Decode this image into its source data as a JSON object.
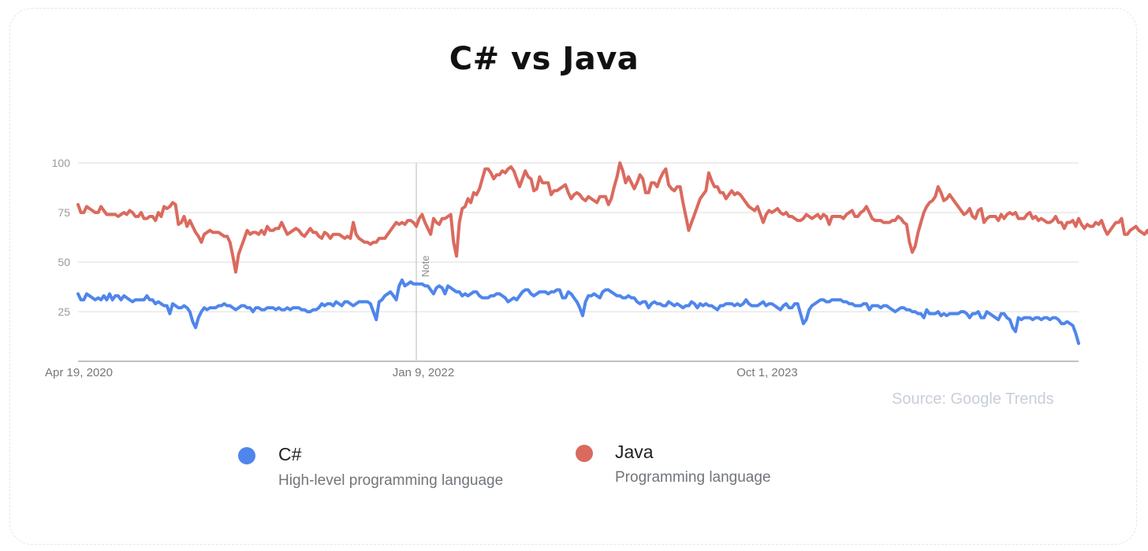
{
  "title": "C# vs Java",
  "source": "Source: Google Trends",
  "colors": {
    "csharp": "#4f86ec",
    "java": "#db6a5e",
    "grid": "#e3e3e3",
    "axis": "#9e9e9e",
    "tick": "#888888"
  },
  "legend": [
    {
      "name": "C#",
      "description": "High-level programming language",
      "color": "#4f86ec"
    },
    {
      "name": "Java",
      "description": "Programming language",
      "color": "#db6a5e"
    }
  ],
  "note_label": "Note",
  "chart_data": {
    "type": "line",
    "title": "C# vs Java",
    "xlabel": "",
    "ylabel": "",
    "ylim": [
      0,
      100
    ],
    "yticks": [
      25,
      50,
      75,
      100
    ],
    "x_range": [
      "Apr 19, 2020",
      "Mar 2025"
    ],
    "xtick_labels": [
      "Apr 19, 2020",
      "Jan 9, 2022",
      "Oct 1, 2023"
    ],
    "annotation": {
      "label": "Note",
      "at": "Jan 9, 2022"
    },
    "grid": true,
    "legend_position": "bottom",
    "series": [
      {
        "name": "C#",
        "values": [
          34,
          31,
          31,
          34,
          33,
          32,
          31,
          32,
          31,
          33,
          31,
          34,
          31,
          33,
          33,
          31,
          33,
          32,
          31,
          30,
          31,
          31,
          31,
          31,
          33,
          31,
          31,
          29,
          30,
          29,
          28,
          28,
          24,
          29,
          28,
          27,
          27,
          28,
          27,
          25,
          20,
          17,
          22,
          25,
          27,
          26,
          27,
          27,
          27,
          28,
          28,
          29,
          28,
          28,
          27,
          26,
          27,
          28,
          28,
          27,
          27,
          25,
          27,
          27,
          26,
          26,
          27,
          27,
          27,
          26,
          27,
          26,
          26,
          27,
          26,
          27,
          27,
          27,
          26,
          26,
          25,
          25,
          26,
          26,
          27,
          29,
          28,
          29,
          29,
          28,
          30,
          29,
          28,
          30,
          30,
          29,
          28,
          29,
          30,
          30,
          30,
          30,
          29,
          25,
          21,
          30,
          31,
          33,
          34,
          35,
          33,
          31,
          38,
          41,
          38,
          39,
          40,
          39,
          39,
          39,
          39,
          38,
          38,
          36,
          34,
          37,
          38,
          37,
          34,
          38,
          37,
          36,
          35,
          35,
          33,
          34,
          33,
          34,
          35,
          35,
          33,
          32,
          32,
          32,
          33,
          33,
          34,
          34,
          33,
          32,
          30,
          31,
          32,
          31,
          33,
          35,
          36,
          36,
          34,
          33,
          34,
          35,
          35,
          35,
          34,
          35,
          35,
          36,
          36,
          32,
          32,
          35,
          34,
          32,
          30,
          27,
          23,
          30,
          33,
          33,
          34,
          33,
          32,
          35,
          36,
          36,
          35,
          34,
          33,
          33,
          32,
          32,
          33,
          32,
          32,
          30,
          29,
          30,
          30,
          27,
          29,
          30,
          29,
          29,
          28,
          28,
          30,
          29,
          28,
          29,
          28,
          27,
          28,
          28,
          30,
          29,
          27,
          29,
          28,
          29,
          28,
          28,
          27,
          26,
          28,
          28,
          29,
          29,
          29,
          28,
          29,
          28,
          29,
          31,
          29,
          28,
          28,
          28,
          29,
          30,
          28,
          29,
          29,
          28,
          27,
          26,
          28,
          29,
          27,
          27,
          29,
          29,
          24,
          19,
          21,
          26,
          28,
          29,
          30,
          31,
          31,
          30,
          30,
          31,
          31,
          31,
          31,
          30,
          30,
          29,
          29,
          28,
          28,
          28,
          29,
          29,
          26,
          28,
          28,
          28,
          27,
          28,
          28,
          27,
          26,
          25,
          26,
          27,
          27,
          26,
          26,
          25,
          25,
          24,
          24,
          22,
          26,
          24,
          24,
          24,
          25,
          23,
          24,
          23,
          24,
          24,
          24,
          24,
          25,
          25,
          24,
          22,
          24,
          24,
          25,
          22,
          22,
          25,
          24,
          23,
          22,
          21,
          24,
          24,
          22,
          21,
          17,
          15,
          22,
          21,
          22,
          22,
          22,
          21,
          22,
          22,
          21,
          22,
          22,
          21,
          22,
          22,
          21,
          19,
          19,
          20,
          19,
          18,
          14,
          9
        ]
      },
      {
        "name": "Java",
        "values": [
          79,
          75,
          75,
          78,
          77,
          76,
          75,
          75,
          78,
          76,
          74,
          74,
          74,
          74,
          73,
          74,
          75,
          74,
          76,
          75,
          73,
          73,
          75,
          72,
          72,
          73,
          73,
          71,
          75,
          73,
          78,
          77,
          78,
          80,
          79,
          69,
          70,
          73,
          68,
          71,
          68,
          65,
          63,
          60,
          64,
          65,
          66,
          65,
          65,
          65,
          64,
          63,
          63,
          60,
          53,
          45,
          54,
          58,
          62,
          66,
          64,
          65,
          65,
          64,
          66,
          64,
          68,
          66,
          66,
          67,
          67,
          70,
          67,
          64,
          65,
          66,
          67,
          66,
          64,
          63,
          65,
          67,
          65,
          65,
          63,
          62,
          65,
          64,
          62,
          64,
          64,
          64,
          63,
          62,
          63,
          62,
          70,
          64,
          62,
          61,
          60,
          60,
          59,
          60,
          60,
          62,
          62,
          62,
          64,
          66,
          68,
          70,
          69,
          70,
          69,
          71,
          71,
          70,
          68,
          72,
          74,
          70,
          67,
          64,
          72,
          70,
          69,
          72,
          72,
          73,
          74,
          60,
          53,
          70,
          77,
          78,
          82,
          80,
          85,
          84,
          87,
          92,
          97,
          97,
          95,
          92,
          94,
          94,
          96,
          95,
          97,
          98,
          96,
          92,
          88,
          92,
          96,
          93,
          92,
          86,
          87,
          93,
          90,
          90,
          90,
          84,
          86,
          86,
          87,
          88,
          89,
          85,
          82,
          84,
          85,
          84,
          82,
          81,
          83,
          82,
          81,
          80,
          83,
          83,
          83,
          79,
          82,
          88,
          93,
          100,
          96,
          90,
          93,
          90,
          87,
          90,
          94,
          92,
          85,
          85,
          90,
          90,
          88,
          92,
          95,
          97,
          89,
          87,
          86,
          88,
          88,
          80,
          73,
          66,
          70,
          74,
          78,
          82,
          84,
          86,
          95,
          91,
          88,
          88,
          85,
          85,
          82,
          84,
          86,
          84,
          85,
          84,
          82,
          80,
          78,
          77,
          76,
          78,
          74,
          70,
          74,
          76,
          75,
          76,
          77,
          75,
          74,
          75,
          73,
          73,
          72,
          71,
          71,
          72,
          74,
          73,
          72,
          73,
          74,
          72,
          74,
          73,
          69,
          73,
          73,
          73,
          73,
          72,
          74,
          75,
          76,
          73,
          73,
          75,
          76,
          78,
          75,
          72,
          71,
          71,
          71,
          70,
          70,
          70,
          71,
          71,
          73,
          72,
          70,
          69,
          60,
          55,
          58,
          65,
          70,
          75,
          78,
          80,
          81,
          83,
          88,
          85,
          81,
          82,
          84,
          82,
          80,
          78,
          76,
          74,
          75,
          77,
          73,
          72,
          76,
          77,
          70,
          72,
          73,
          73,
          73,
          71,
          74,
          72,
          74,
          75,
          74,
          75,
          72,
          72,
          72,
          74,
          75,
          72,
          73,
          71,
          72,
          71,
          70,
          70,
          71,
          73,
          70,
          70,
          67,
          70,
          70,
          71,
          68,
          72,
          69,
          67,
          69,
          68,
          68,
          70,
          69,
          71,
          67,
          64,
          66,
          68,
          70,
          70,
          72,
          64,
          64,
          66,
          67,
          68,
          66,
          65,
          64,
          66,
          63,
          57,
          55,
          51,
          60,
          66,
          68,
          68,
          70,
          70,
          69,
          68,
          66,
          66,
          67,
          68,
          65,
          64,
          66,
          64,
          64,
          63,
          64,
          64,
          62,
          68,
          67,
          66,
          50
        ]
      }
    ]
  }
}
